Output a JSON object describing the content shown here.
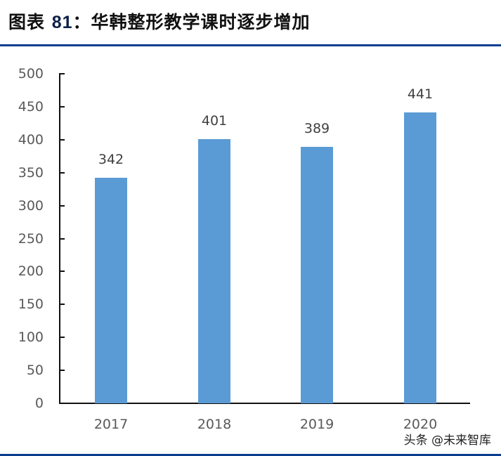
{
  "header": {
    "title_prefix": "图表",
    "title_number": "81",
    "title_text": "：华韩整形教学课时逐步增加"
  },
  "watermark": "头条 @未来智库",
  "colors": {
    "bar": "#5b9bd5",
    "rule": "#0a3d8f"
  },
  "chart_data": {
    "type": "bar",
    "title": "华韩整形教学课时逐步增加",
    "categories": [
      "2017",
      "2018",
      "2019",
      "2020"
    ],
    "values": [
      342,
      401,
      389,
      441
    ],
    "data_labels": [
      "342",
      "401",
      "389",
      "441"
    ],
    "xlabel": "",
    "ylabel": "",
    "ylim": [
      0,
      500
    ],
    "yticks": [
      "0",
      "50",
      "100",
      "150",
      "200",
      "250",
      "300",
      "350",
      "400",
      "450",
      "500"
    ],
    "grid": false,
    "legend": null
  }
}
